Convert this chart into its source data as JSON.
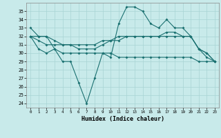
{
  "xlabel": "Humidex (Indice chaleur)",
  "background_color": "#c8eaea",
  "grid_color": "#a8d4d4",
  "line_color": "#1a7070",
  "x": [
    0,
    1,
    2,
    3,
    4,
    5,
    6,
    7,
    8,
    9,
    10,
    11,
    12,
    13,
    14,
    15,
    16,
    17,
    18,
    19,
    20,
    21,
    22,
    23
  ],
  "line1": [
    33.0,
    32.0,
    32.0,
    30.5,
    29.0,
    29.0,
    26.5,
    24.0,
    27.0,
    30.0,
    29.5,
    33.5,
    35.5,
    35.5,
    35.0,
    33.5,
    33.0,
    34.0,
    33.0,
    33.0,
    32.0,
    30.5,
    30.0,
    29.0
  ],
  "line2": [
    32.0,
    32.0,
    32.0,
    31.5,
    31.0,
    31.0,
    30.5,
    30.5,
    30.5,
    31.0,
    31.5,
    32.0,
    32.0,
    32.0,
    32.0,
    32.0,
    32.0,
    32.0,
    32.0,
    32.0,
    32.0,
    30.5,
    30.0,
    29.0
  ],
  "line3": [
    32.0,
    31.5,
    31.0,
    31.0,
    31.0,
    31.0,
    31.0,
    31.0,
    31.0,
    31.5,
    31.5,
    31.5,
    32.0,
    32.0,
    32.0,
    32.0,
    32.0,
    32.5,
    32.5,
    32.0,
    32.0,
    30.5,
    29.5,
    29.0
  ],
  "line4": [
    32.0,
    30.5,
    30.0,
    30.5,
    30.0,
    30.0,
    30.0,
    30.0,
    30.0,
    30.0,
    30.0,
    29.5,
    29.5,
    29.5,
    29.5,
    29.5,
    29.5,
    29.5,
    29.5,
    29.5,
    29.5,
    29.0,
    29.0,
    29.0
  ],
  "ylim": [
    23.5,
    36.0
  ],
  "yticks": [
    24,
    25,
    26,
    27,
    28,
    29,
    30,
    31,
    32,
    33,
    34,
    35
  ],
  "xticks": [
    0,
    1,
    2,
    3,
    4,
    5,
    6,
    7,
    8,
    9,
    10,
    11,
    12,
    13,
    14,
    15,
    16,
    17,
    18,
    19,
    20,
    21,
    22,
    23
  ],
  "marker": "D",
  "markersize": 2.0,
  "linewidth": 0.8
}
